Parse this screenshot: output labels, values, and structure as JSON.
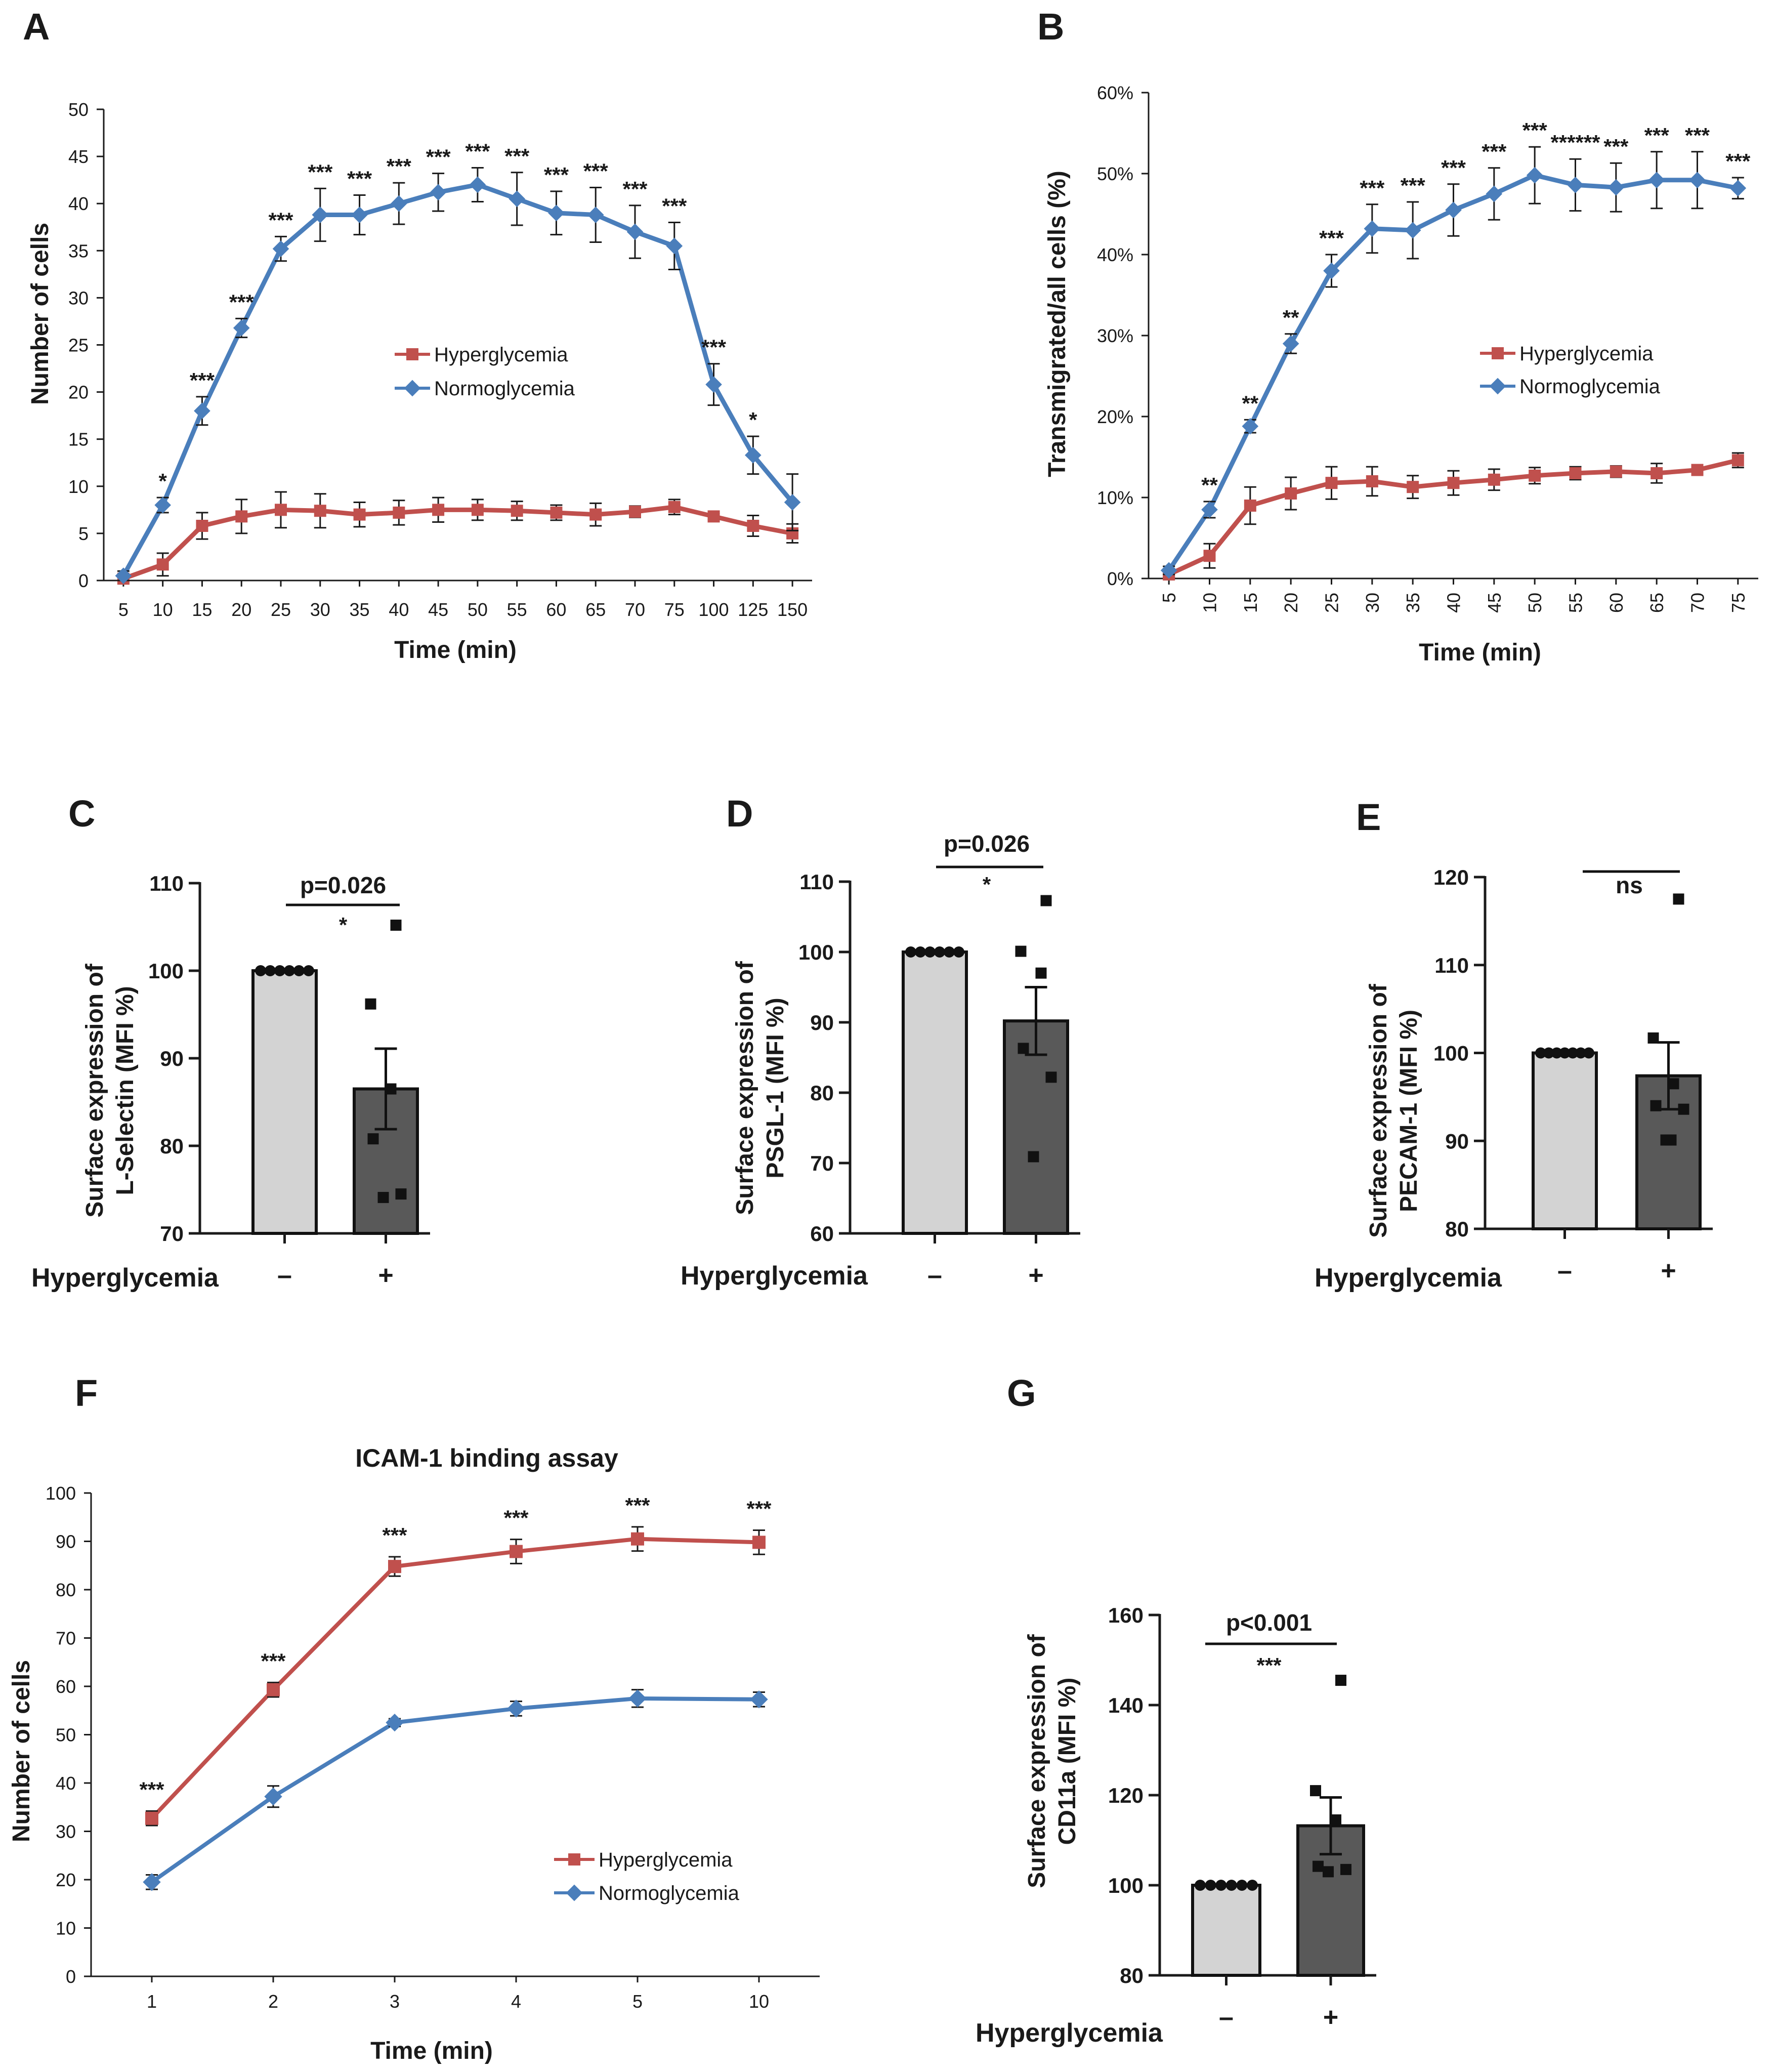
{
  "colors": {
    "hyper": "#c0504d",
    "normo": "#4a7ebb",
    "bar_light": "#d3d3d3",
    "bar_dark": "#595959",
    "axis": "#1a1a1a"
  },
  "panels": {
    "A": {
      "letter": "A",
      "type": "line",
      "categories": [
        "5",
        "10",
        "15",
        "20",
        "25",
        "30",
        "35",
        "40",
        "45",
        "50",
        "55",
        "60",
        "65",
        "70",
        "75",
        "100",
        "125",
        "150"
      ],
      "ylim": [
        0,
        50
      ],
      "yticks": [
        0,
        5,
        10,
        15,
        20,
        25,
        30,
        35,
        40,
        45,
        50
      ],
      "xlabel": "Time (min)",
      "ylabel": "Number of cells",
      "legend": [
        "Hyperglycemia",
        "Normoglycemia"
      ],
      "series": [
        {
          "name": "Hyperglycemia",
          "color": "hyper",
          "marker": "square",
          "values": [
            0.2,
            1.7,
            5.8,
            6.8,
            7.5,
            7.4,
            7.0,
            7.2,
            7.5,
            7.5,
            7.4,
            7.2,
            7.0,
            7.3,
            7.8,
            6.8,
            5.8,
            5.0
          ],
          "errors": [
            0.3,
            1.2,
            1.4,
            1.8,
            1.9,
            1.8,
            1.3,
            1.3,
            1.3,
            1.1,
            1.0,
            0.8,
            1.2,
            0.6,
            0.8,
            0.3,
            1.1,
            1.0
          ]
        },
        {
          "name": "Normoglycemia",
          "color": "normo",
          "marker": "diamond",
          "values": [
            0.5,
            8.0,
            18.0,
            26.8,
            35.2,
            38.8,
            38.8,
            40.0,
            41.2,
            42.0,
            40.5,
            39.0,
            38.8,
            37.0,
            35.5,
            20.8,
            13.3,
            8.3
          ],
          "errors": [
            0.5,
            0.8,
            1.5,
            1.0,
            1.3,
            2.8,
            2.1,
            2.2,
            2.0,
            1.8,
            2.8,
            2.3,
            2.9,
            2.8,
            2.5,
            2.2,
            2.0,
            3.0
          ]
        }
      ],
      "annotations": [
        "",
        "*",
        "***",
        "***",
        "***",
        "***",
        "***",
        "***",
        "***",
        "***",
        "***",
        "***",
        "***",
        "***",
        "***",
        "***",
        "*",
        ""
      ]
    },
    "B": {
      "letter": "B",
      "type": "line",
      "categories": [
        "5",
        "10",
        "15",
        "20",
        "25",
        "30",
        "35",
        "40",
        "45",
        "50",
        "55",
        "60",
        "65",
        "70",
        "75"
      ],
      "ylim": [
        0,
        60
      ],
      "yticks": [
        "0%",
        "10%",
        "20%",
        "30%",
        "40%",
        "50%",
        "60%"
      ],
      "xlabel": "Time (min)",
      "ylabel": "Transmigrated/all cells (%)",
      "legend": [
        "Hyperglycemia",
        "Normoglycemia"
      ],
      "series": [
        {
          "name": "Hyperglycemia",
          "color": "hyper",
          "marker": "square",
          "values": [
            0.5,
            2.8,
            9.0,
            10.5,
            11.8,
            12.0,
            11.3,
            11.8,
            12.2,
            12.7,
            13.0,
            13.2,
            13.0,
            13.4,
            14.6
          ],
          "errors": [
            0.4,
            1.5,
            2.3,
            2.0,
            2.0,
            1.8,
            1.4,
            1.5,
            1.3,
            1.0,
            0.8,
            0.7,
            1.2,
            0.6,
            0.9
          ]
        },
        {
          "name": "Normoglycemia",
          "color": "normo",
          "marker": "diamond",
          "values": [
            1.0,
            8.5,
            18.8,
            29.0,
            38.0,
            43.2,
            43.0,
            45.5,
            47.5,
            49.8,
            48.6,
            48.3,
            49.2,
            49.2,
            48.2
          ],
          "errors": [
            0.5,
            1.0,
            0.8,
            1.2,
            2.0,
            3.0,
            3.5,
            3.2,
            3.2,
            3.5,
            3.2,
            3.0,
            3.5,
            3.5,
            1.3
          ]
        }
      ],
      "annotations": [
        "",
        "**",
        "**",
        "**",
        "***",
        "***",
        "***",
        "***",
        "***",
        "***",
        "******",
        "***",
        "***",
        "***",
        "***"
      ]
    },
    "C": {
      "letter": "C",
      "type": "bar",
      "ylabel_lines": [
        "Surface expression of",
        "L-Selectin (MFI %)"
      ],
      "ylim": [
        70,
        110
      ],
      "yticks": [
        70,
        80,
        90,
        100,
        110
      ],
      "group_label": "Hyperglycemia",
      "categories": [
        "–",
        "+"
      ],
      "values": [
        100,
        86.5
      ],
      "errors": [
        0,
        4.6
      ],
      "points": [
        [
          100,
          100,
          100,
          100,
          100,
          100
        ],
        [
          105.2,
          96.2,
          86.5,
          80.8,
          74.5,
          74.1
        ]
      ],
      "pvalue": "p=0.026",
      "sig": "*"
    },
    "D": {
      "letter": "D",
      "type": "bar",
      "ylabel_lines": [
        "Surface expression of",
        "PSGL-1 (MFI %)"
      ],
      "ylim": [
        60,
        110
      ],
      "yticks": [
        60,
        70,
        80,
        90,
        100,
        110
      ],
      "group_label": "Hyperglycemia",
      "categories": [
        "–",
        "+"
      ],
      "values": [
        100,
        90.2
      ],
      "errors": [
        0,
        4.8
      ],
      "points": [
        [
          100,
          100,
          100,
          100,
          100,
          100
        ],
        [
          107.3,
          100.1,
          97.0,
          86.3,
          82.2,
          70.9
        ]
      ],
      "pvalue": "p=0.026",
      "sig": "*"
    },
    "E": {
      "letter": "E",
      "type": "bar",
      "ylabel_lines": [
        "Surface expression of",
        "PECAM-1 (MFI %)"
      ],
      "ylim": [
        80,
        120
      ],
      "yticks": [
        80,
        90,
        100,
        110,
        120
      ],
      "group_label": "Hyperglycemia",
      "categories": [
        "–",
        "+"
      ],
      "values": [
        100,
        97.4
      ],
      "errors": [
        0,
        3.8
      ],
      "points": [
        [
          100,
          100,
          100,
          100,
          100,
          100,
          100
        ],
        [
          117.5,
          101.7,
          96.5,
          94.0,
          93.6,
          90.1,
          90.1
        ]
      ],
      "pvalue": "",
      "sig": "ns"
    },
    "F": {
      "letter": "F",
      "type": "line",
      "title": "ICAM-1 binding assay",
      "categories": [
        "1",
        "2",
        "3",
        "4",
        "5",
        "10"
      ],
      "ylim": [
        0,
        100
      ],
      "yticks": [
        0,
        10,
        20,
        30,
        40,
        50,
        60,
        70,
        80,
        90,
        100
      ],
      "xlabel": "Time (min)",
      "ylabel": "Number of cells",
      "legend": [
        "Hyperglycemia",
        "Normoglycemia"
      ],
      "series": [
        {
          "name": "Hyperglycemia",
          "color": "hyper",
          "marker": "square",
          "values": [
            32.7,
            59.3,
            84.8,
            87.9,
            90.5,
            89.8
          ],
          "errors": [
            1.5,
            1.5,
            2.0,
            2.5,
            2.5,
            2.5
          ]
        },
        {
          "name": "Normoglycemia",
          "color": "normo",
          "marker": "diamond",
          "values": [
            19.5,
            37.2,
            52.5,
            55.4,
            57.5,
            57.3
          ],
          "errors": [
            1.5,
            2.2,
            0.8,
            1.5,
            1.8,
            1.5
          ]
        }
      ],
      "annotations": [
        "***",
        "***",
        "***",
        "***",
        "***",
        "***"
      ]
    },
    "G": {
      "letter": "G",
      "type": "bar",
      "ylabel_lines": [
        "Surface expression of",
        "CD11a (MFI %)"
      ],
      "ylim": [
        80,
        160
      ],
      "yticks": [
        80,
        100,
        120,
        140,
        160
      ],
      "group_label": "Hyperglycemia",
      "categories": [
        "–",
        "+"
      ],
      "values": [
        100,
        113.2
      ],
      "errors": [
        0,
        6.3
      ],
      "points": [
        [
          100,
          100,
          100,
          100,
          100,
          100
        ],
        [
          145.5,
          121.0,
          114.5,
          104.2,
          103.5,
          103.0
        ]
      ],
      "pvalue": "p<0.001",
      "sig": "***"
    }
  }
}
